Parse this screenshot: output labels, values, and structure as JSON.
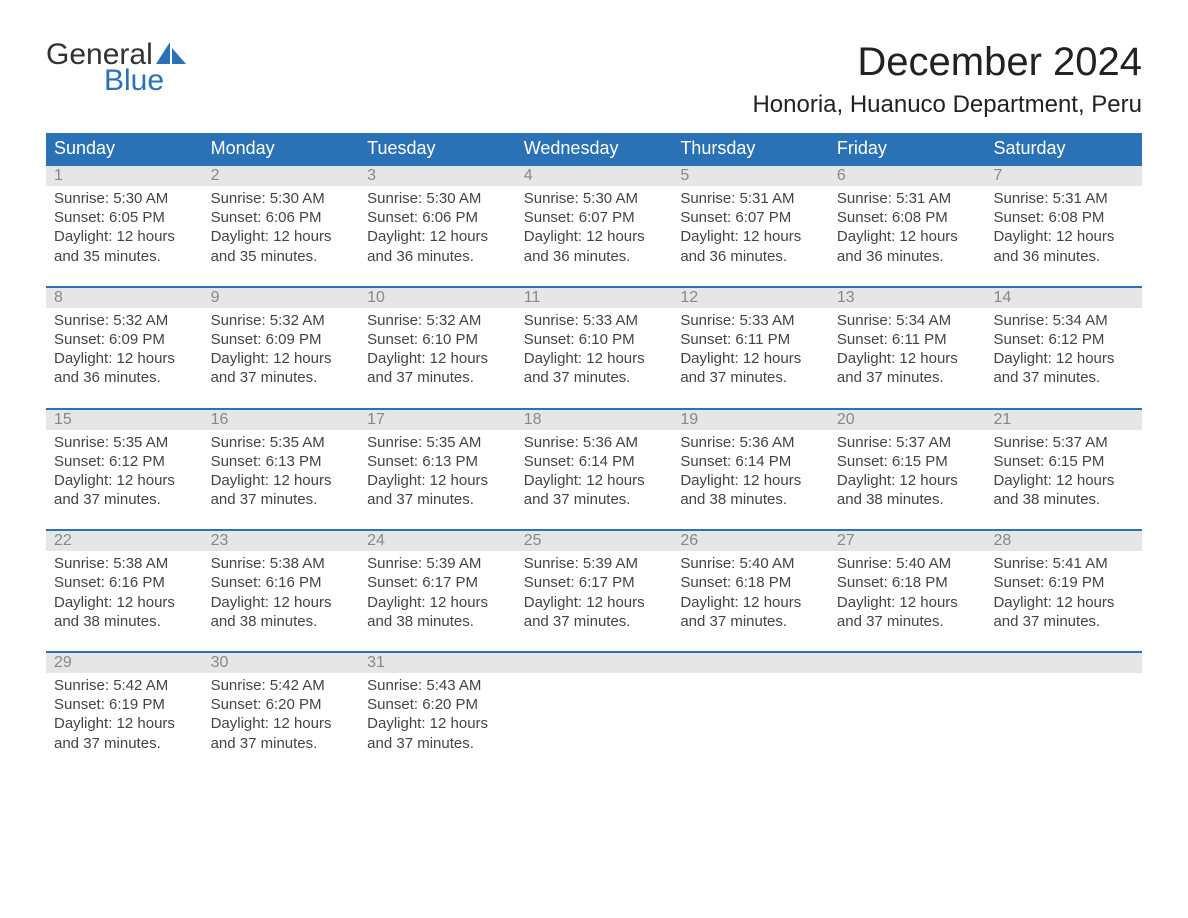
{
  "logo": {
    "line1": "General",
    "line2": "Blue"
  },
  "title": "December 2024",
  "location": "Honoria, Huanuco Department, Peru",
  "colors": {
    "header_bg": "#2a72b5",
    "header_text": "#ffffff",
    "date_strip_bg": "#e6e6e6",
    "date_strip_text": "#888888",
    "body_text": "#444444",
    "logo_blue": "#2a72b5"
  },
  "day_names": [
    "Sunday",
    "Monday",
    "Tuesday",
    "Wednesday",
    "Thursday",
    "Friday",
    "Saturday"
  ],
  "weeks": [
    [
      {
        "date": "1",
        "sunrise": "5:30 AM",
        "sunset": "6:05 PM",
        "daylight": "12 hours and 35 minutes."
      },
      {
        "date": "2",
        "sunrise": "5:30 AM",
        "sunset": "6:06 PM",
        "daylight": "12 hours and 35 minutes."
      },
      {
        "date": "3",
        "sunrise": "5:30 AM",
        "sunset": "6:06 PM",
        "daylight": "12 hours and 36 minutes."
      },
      {
        "date": "4",
        "sunrise": "5:30 AM",
        "sunset": "6:07 PM",
        "daylight": "12 hours and 36 minutes."
      },
      {
        "date": "5",
        "sunrise": "5:31 AM",
        "sunset": "6:07 PM",
        "daylight": "12 hours and 36 minutes."
      },
      {
        "date": "6",
        "sunrise": "5:31 AM",
        "sunset": "6:08 PM",
        "daylight": "12 hours and 36 minutes."
      },
      {
        "date": "7",
        "sunrise": "5:31 AM",
        "sunset": "6:08 PM",
        "daylight": "12 hours and 36 minutes."
      }
    ],
    [
      {
        "date": "8",
        "sunrise": "5:32 AM",
        "sunset": "6:09 PM",
        "daylight": "12 hours and 36 minutes."
      },
      {
        "date": "9",
        "sunrise": "5:32 AM",
        "sunset": "6:09 PM",
        "daylight": "12 hours and 37 minutes."
      },
      {
        "date": "10",
        "sunrise": "5:32 AM",
        "sunset": "6:10 PM",
        "daylight": "12 hours and 37 minutes."
      },
      {
        "date": "11",
        "sunrise": "5:33 AM",
        "sunset": "6:10 PM",
        "daylight": "12 hours and 37 minutes."
      },
      {
        "date": "12",
        "sunrise": "5:33 AM",
        "sunset": "6:11 PM",
        "daylight": "12 hours and 37 minutes."
      },
      {
        "date": "13",
        "sunrise": "5:34 AM",
        "sunset": "6:11 PM",
        "daylight": "12 hours and 37 minutes."
      },
      {
        "date": "14",
        "sunrise": "5:34 AM",
        "sunset": "6:12 PM",
        "daylight": "12 hours and 37 minutes."
      }
    ],
    [
      {
        "date": "15",
        "sunrise": "5:35 AM",
        "sunset": "6:12 PM",
        "daylight": "12 hours and 37 minutes."
      },
      {
        "date": "16",
        "sunrise": "5:35 AM",
        "sunset": "6:13 PM",
        "daylight": "12 hours and 37 minutes."
      },
      {
        "date": "17",
        "sunrise": "5:35 AM",
        "sunset": "6:13 PM",
        "daylight": "12 hours and 37 minutes."
      },
      {
        "date": "18",
        "sunrise": "5:36 AM",
        "sunset": "6:14 PM",
        "daylight": "12 hours and 37 minutes."
      },
      {
        "date": "19",
        "sunrise": "5:36 AM",
        "sunset": "6:14 PM",
        "daylight": "12 hours and 38 minutes."
      },
      {
        "date": "20",
        "sunrise": "5:37 AM",
        "sunset": "6:15 PM",
        "daylight": "12 hours and 38 minutes."
      },
      {
        "date": "21",
        "sunrise": "5:37 AM",
        "sunset": "6:15 PM",
        "daylight": "12 hours and 38 minutes."
      }
    ],
    [
      {
        "date": "22",
        "sunrise": "5:38 AM",
        "sunset": "6:16 PM",
        "daylight": "12 hours and 38 minutes."
      },
      {
        "date": "23",
        "sunrise": "5:38 AM",
        "sunset": "6:16 PM",
        "daylight": "12 hours and 38 minutes."
      },
      {
        "date": "24",
        "sunrise": "5:39 AM",
        "sunset": "6:17 PM",
        "daylight": "12 hours and 38 minutes."
      },
      {
        "date": "25",
        "sunrise": "5:39 AM",
        "sunset": "6:17 PM",
        "daylight": "12 hours and 37 minutes."
      },
      {
        "date": "26",
        "sunrise": "5:40 AM",
        "sunset": "6:18 PM",
        "daylight": "12 hours and 37 minutes."
      },
      {
        "date": "27",
        "sunrise": "5:40 AM",
        "sunset": "6:18 PM",
        "daylight": "12 hours and 37 minutes."
      },
      {
        "date": "28",
        "sunrise": "5:41 AM",
        "sunset": "6:19 PM",
        "daylight": "12 hours and 37 minutes."
      }
    ],
    [
      {
        "date": "29",
        "sunrise": "5:42 AM",
        "sunset": "6:19 PM",
        "daylight": "12 hours and 37 minutes."
      },
      {
        "date": "30",
        "sunrise": "5:42 AM",
        "sunset": "6:20 PM",
        "daylight": "12 hours and 37 minutes."
      },
      {
        "date": "31",
        "sunrise": "5:43 AM",
        "sunset": "6:20 PM",
        "daylight": "12 hours and 37 minutes."
      },
      null,
      null,
      null,
      null
    ]
  ],
  "labels": {
    "sunrise": "Sunrise: ",
    "sunset": "Sunset: ",
    "daylight": "Daylight: "
  }
}
